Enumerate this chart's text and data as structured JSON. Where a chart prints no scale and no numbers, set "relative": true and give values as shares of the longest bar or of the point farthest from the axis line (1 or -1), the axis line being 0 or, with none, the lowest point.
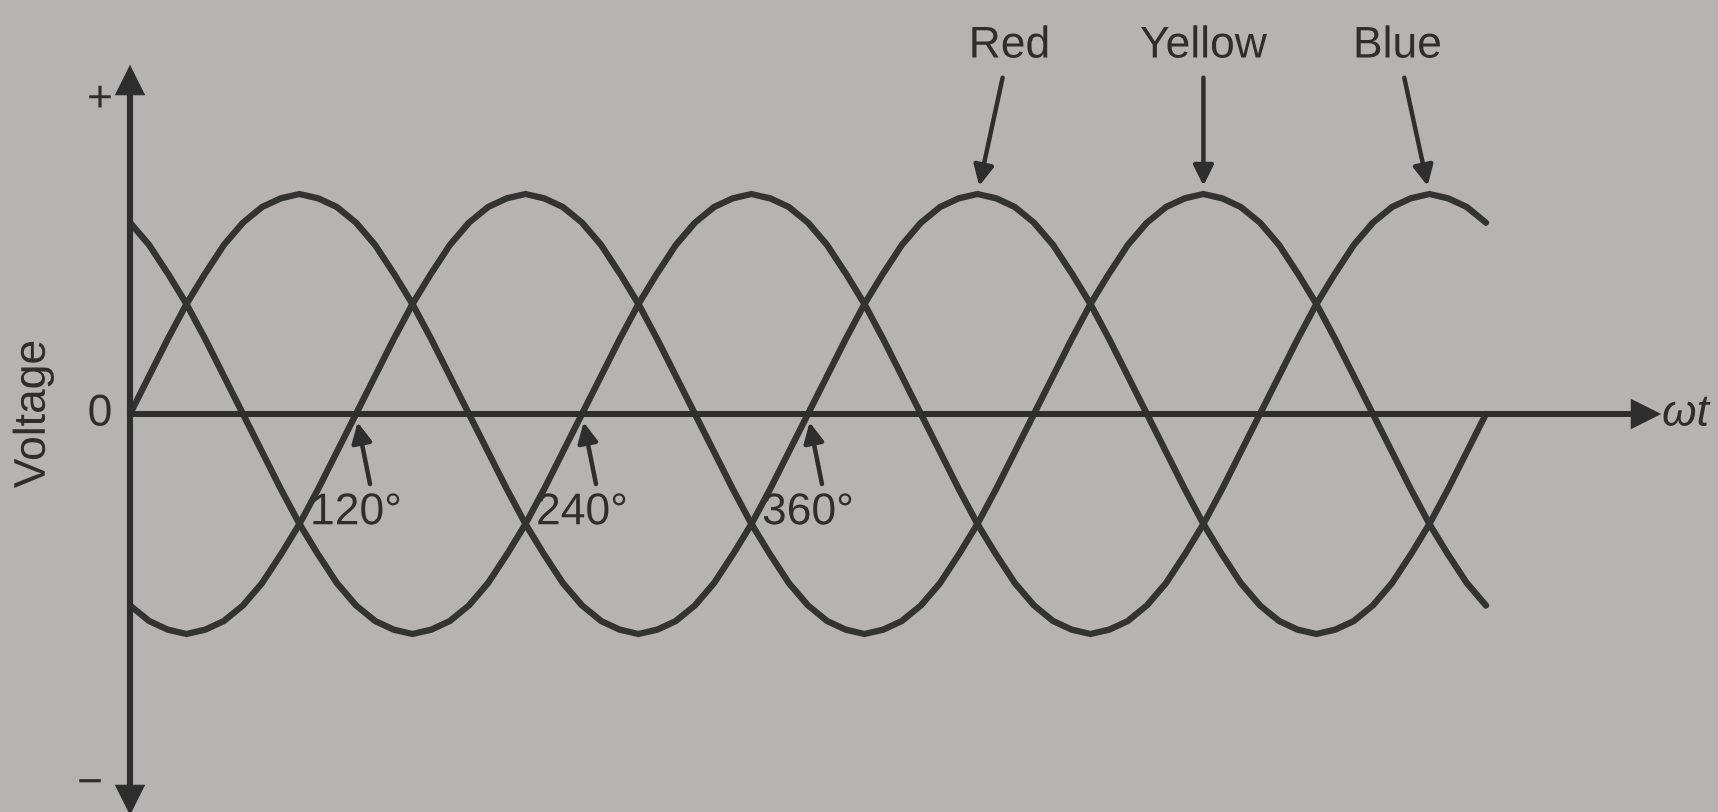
{
  "chart_data": {
    "type": "line",
    "xlabel": "ωt",
    "ylabel": "Voltage",
    "relative": true,
    "xlim": [
      0,
      805
    ],
    "xticks": [
      {
        "value": 120,
        "label": "120°"
      },
      {
        "value": 240,
        "label": "240°"
      },
      {
        "value": 360,
        "label": "360°"
      }
    ],
    "x": [
      0,
      10,
      20,
      30,
      40,
      50,
      60,
      70,
      80,
      90,
      100,
      110,
      120,
      130,
      140,
      150,
      160,
      170,
      180,
      190,
      200,
      210,
      220,
      230,
      240,
      250,
      260,
      270,
      280,
      290,
      300,
      310,
      320,
      330,
      340,
      350,
      360,
      370,
      380,
      390,
      400,
      410,
      420,
      430,
      440,
      450,
      460,
      470,
      480,
      490,
      500,
      510,
      520,
      530,
      540,
      550,
      560,
      570,
      580,
      590,
      600,
      610,
      620,
      630,
      640,
      650,
      660,
      670,
      680,
      690,
      700,
      710,
      720
    ],
    "series": [
      {
        "name": "Red",
        "color": "#333333",
        "values": [
          0,
          0.17,
          0.34,
          0.5,
          0.64,
          0.77,
          0.87,
          0.94,
          0.98,
          1,
          0.98,
          0.94,
          0.87,
          0.77,
          0.64,
          0.5,
          0.34,
          0.17,
          0,
          -0.17,
          -0.34,
          -0.5,
          -0.64,
          -0.77,
          -0.87,
          -0.94,
          -0.98,
          -1,
          -0.98,
          -0.94,
          -0.87,
          -0.77,
          -0.64,
          -0.5,
          -0.34,
          -0.17,
          0,
          0.17,
          0.34,
          0.5,
          0.64,
          0.77,
          0.87,
          0.94,
          0.98,
          1,
          0.98,
          0.94,
          0.87,
          0.77,
          0.64,
          0.5,
          0.34,
          0.17,
          0,
          -0.17,
          -0.34,
          -0.5,
          -0.64,
          -0.77,
          -0.87,
          -0.94,
          -0.98,
          -1,
          -0.98,
          -0.94,
          -0.87,
          -0.77,
          -0.64,
          -0.5,
          -0.34,
          -0.17,
          0
        ]
      },
      {
        "name": "Yellow",
        "color": "#333333",
        "values": [
          -0.87,
          -0.94,
          -0.98,
          -1,
          -0.98,
          -0.94,
          -0.87,
          -0.77,
          -0.64,
          -0.5,
          -0.34,
          -0.17,
          0,
          0.17,
          0.34,
          0.5,
          0.64,
          0.77,
          0.87,
          0.94,
          0.98,
          1,
          0.98,
          0.94,
          0.87,
          0.77,
          0.64,
          0.5,
          0.34,
          0.17,
          0,
          -0.17,
          -0.34,
          -0.5,
          -0.64,
          -0.77,
          -0.87,
          -0.94,
          -0.98,
          -1,
          -0.98,
          -0.94,
          -0.87,
          -0.77,
          -0.64,
          -0.5,
          -0.34,
          -0.17,
          0,
          0.17,
          0.34,
          0.5,
          0.64,
          0.77,
          0.87,
          0.94,
          0.98,
          1,
          0.98,
          0.94,
          0.87,
          0.77,
          0.64,
          0.5,
          0.34,
          0.17,
          0,
          -0.17,
          -0.34,
          -0.5,
          -0.64,
          -0.77,
          -0.87
        ]
      },
      {
        "name": "Blue",
        "color": "#333333",
        "values": [
          0.87,
          0.77,
          0.64,
          0.5,
          0.34,
          0.17,
          0,
          -0.17,
          -0.34,
          -0.5,
          -0.64,
          -0.77,
          -0.87,
          -0.94,
          -0.98,
          -1,
          -0.98,
          -0.94,
          -0.87,
          -0.77,
          -0.64,
          -0.5,
          -0.34,
          -0.17,
          0,
          0.17,
          0.34,
          0.5,
          0.64,
          0.77,
          0.87,
          0.94,
          0.98,
          1,
          0.98,
          0.94,
          0.87,
          0.77,
          0.64,
          0.5,
          0.34,
          0.17,
          0,
          -0.17,
          -0.34,
          -0.5,
          -0.64,
          -0.77,
          -0.87,
          -0.94,
          -0.98,
          -1,
          -0.98,
          -0.94,
          -0.87,
          -0.77,
          -0.64,
          -0.5,
          -0.34,
          -0.17,
          0,
          0.17,
          0.34,
          0.5,
          0.64,
          0.77,
          0.87,
          0.94,
          0.98,
          1,
          0.98,
          0.94,
          0.87
        ]
      }
    ],
    "annotations": [
      "+",
      "0",
      "−"
    ]
  }
}
